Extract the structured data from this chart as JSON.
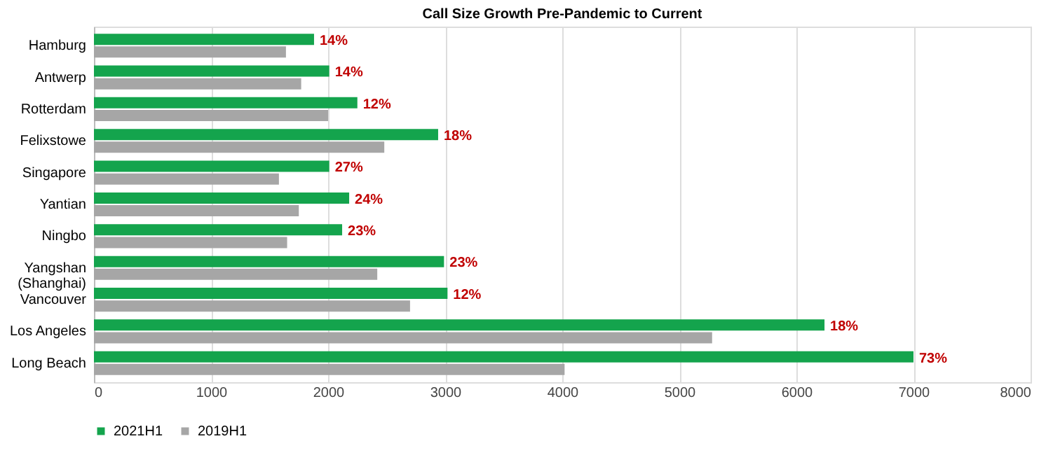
{
  "chart_data": {
    "type": "bar",
    "orientation": "horizontal",
    "title": "Call Size Growth Pre-Pandemic to Current",
    "categories": [
      "Hamburg",
      "Antwerp",
      "Rotterdam",
      "Felixstowe",
      "Singapore",
      "Yantian",
      "Ningbo",
      "Yangshan\n(Shanghai)",
      "Vancouver",
      "Los Angeles",
      "Long Beach"
    ],
    "series": [
      {
        "name": "2021H1",
        "color": "#14a44d",
        "values": [
          1880,
          2010,
          2250,
          2940,
          2010,
          2180,
          2120,
          2990,
          3020,
          6240,
          7000
        ]
      },
      {
        "name": "2019H1",
        "color": "#a6a6a6",
        "values": [
          1640,
          1770,
          2000,
          2480,
          1580,
          1750,
          1650,
          2420,
          2700,
          5280,
          4020
        ]
      }
    ],
    "annotations": [
      {
        "text": "14%",
        "x": 1880,
        "y": "Hamburg"
      },
      {
        "text": "14%",
        "x": 2010,
        "y": "Antwerp"
      },
      {
        "text": "12%",
        "x": 2250,
        "y": "Rotterdam"
      },
      {
        "text": "18%",
        "x": 2940,
        "y": "Felixstowe"
      },
      {
        "text": "27%",
        "x": 2010,
        "y": "Singapore"
      },
      {
        "text": "24%",
        "x": 2180,
        "y": "Yantian"
      },
      {
        "text": "23%",
        "x": 2120,
        "y": "Ningbo"
      },
      {
        "text": "23%",
        "x": 2990,
        "y": "Yangshan\n(Shanghai)"
      },
      {
        "text": "12%",
        "x": 3020,
        "y": "Vancouver"
      },
      {
        "text": "18%",
        "x": 6240,
        "y": "Los Angeles"
      },
      {
        "text": "73%",
        "x": 7000,
        "y": "Long Beach"
      }
    ],
    "xlim": [
      0,
      8000
    ],
    "xticks": [
      0,
      1000,
      2000,
      3000,
      4000,
      5000,
      6000,
      7000,
      8000
    ],
    "grid": "x",
    "legend": "bottom"
  }
}
